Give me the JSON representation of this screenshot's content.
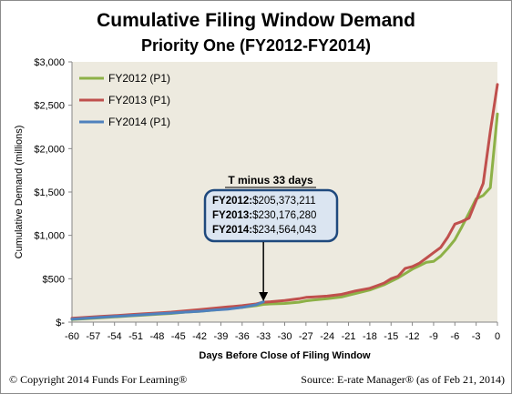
{
  "chart_data": {
    "type": "line",
    "title": "Cumulative Filing Window Demand",
    "subtitle": "Priority One (FY2012-FY2014)",
    "xlabel": "Days Before Close of Filing Window",
    "ylabel": "Cumulative Demand (millions)",
    "xlim": [
      -60,
      0
    ],
    "ylim": [
      0,
      3000
    ],
    "grid": false,
    "legend_position": "top-left",
    "x_tick_labels": [
      "-60",
      "-57",
      "-54",
      "-51",
      "-48",
      "-45",
      "-42",
      "-39",
      "-36",
      "-33",
      "-30",
      "-27",
      "-24",
      "-21",
      "-18",
      "-15",
      "-12",
      "-9",
      "-6",
      "-3",
      "0"
    ],
    "x_tick_values": [
      -60,
      -57,
      -54,
      -51,
      -48,
      -45,
      -42,
      -39,
      -36,
      -33,
      -30,
      -27,
      -24,
      -21,
      -18,
      -15,
      -12,
      -9,
      -6,
      -3,
      0
    ],
    "y_tick_labels": [
      "$-",
      "$500",
      "$1,000",
      "$1,500",
      "$2,000",
      "$2,500",
      "$3,000"
    ],
    "y_tick_values": [
      0,
      500,
      1000,
      1500,
      2000,
      2500,
      3000
    ],
    "series": [
      {
        "name": "FY2012 (P1)",
        "color": "#8db147",
        "x": [
          -60,
          -58,
          -56,
          -54,
          -52,
          -50,
          -48,
          -46,
          -44,
          -42,
          -40,
          -38,
          -36,
          -34,
          -33,
          -32,
          -30,
          -28,
          -27,
          -26,
          -24,
          -22,
          -21,
          -20,
          -18,
          -17,
          -16,
          -15,
          -14,
          -13,
          -12,
          -11,
          -10,
          -9,
          -8,
          -7,
          -6,
          -5,
          -4,
          -3,
          -2,
          -1,
          0
        ],
        "y": [
          30,
          40,
          50,
          60,
          70,
          80,
          90,
          100,
          115,
          125,
          140,
          155,
          170,
          190,
          205,
          210,
          215,
          230,
          245,
          255,
          270,
          290,
          310,
          330,
          370,
          400,
          430,
          470,
          510,
          560,
          610,
          650,
          690,
          700,
          760,
          850,
          950,
          1100,
          1260,
          1420,
          1460,
          1550,
          2400
        ]
      },
      {
        "name": "FY2013 (P1)",
        "color": "#c0504d",
        "x": [
          -60,
          -58,
          -56,
          -54,
          -52,
          -50,
          -48,
          -46,
          -44,
          -42,
          -40,
          -38,
          -36,
          -34,
          -33,
          -32,
          -30,
          -28,
          -27,
          -26,
          -24,
          -22,
          -21,
          -20,
          -18,
          -17,
          -16,
          -15,
          -14,
          -13,
          -12,
          -11,
          -10,
          -9,
          -8,
          -7,
          -6,
          -5,
          -4,
          -3,
          -2,
          -1,
          0
        ],
        "y": [
          45,
          55,
          65,
          75,
          85,
          95,
          105,
          115,
          130,
          145,
          160,
          175,
          190,
          210,
          230,
          235,
          250,
          270,
          285,
          290,
          300,
          320,
          340,
          360,
          390,
          420,
          450,
          500,
          530,
          620,
          640,
          680,
          740,
          800,
          860,
          980,
          1130,
          1160,
          1200,
          1400,
          1600,
          2200,
          2740
        ]
      },
      {
        "name": "FY2014 (P1)",
        "color": "#4f81bd",
        "x": [
          -60,
          -58,
          -56,
          -54,
          -52,
          -50,
          -48,
          -46,
          -44,
          -42,
          -40,
          -38,
          -36,
          -34,
          -33
        ],
        "y": [
          35,
          45,
          55,
          65,
          75,
          85,
          95,
          105,
          115,
          125,
          140,
          150,
          170,
          200,
          235
        ]
      }
    ],
    "annotation": {
      "title": "T minus 33 days",
      "x": -33,
      "lines": [
        {
          "label": "FY2012:",
          "value": "$205,373,211"
        },
        {
          "label": "FY2013:",
          "value": "$230,176,280"
        },
        {
          "label": "FY2014:",
          "value": "$234,564,043"
        }
      ]
    }
  },
  "footer": {
    "copyright": "© Copyright  2014 Funds For Learning®",
    "source": "Source:  E-rate  Manager®  (as of Feb 21, 2014)"
  }
}
